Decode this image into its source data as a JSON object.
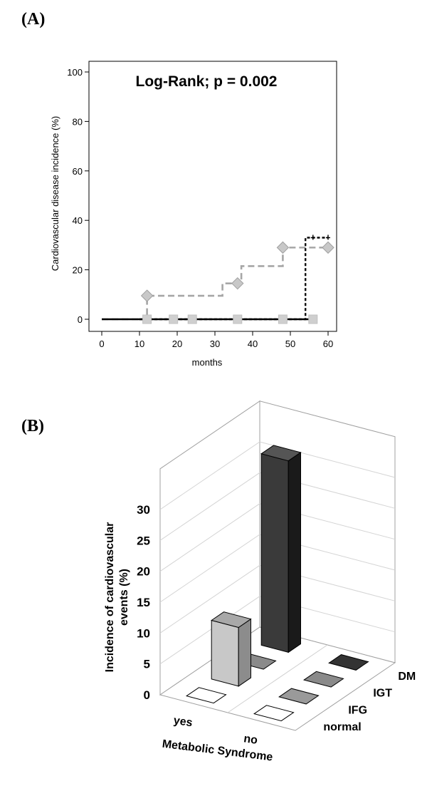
{
  "panel_a_label": "(A)",
  "panel_b_label": "(B)",
  "chart_data": [
    {
      "type": "line",
      "annotation": "Log-Rank; p = 0.002",
      "xlabel": "months",
      "ylabel": "Cardiovascular disease incidence (%)",
      "xlim": [
        0,
        60
      ],
      "ylim": [
        0,
        100
      ],
      "xticks": [
        0,
        10,
        20,
        30,
        40,
        50,
        60
      ],
      "yticks": [
        0,
        20,
        40,
        60,
        80,
        100
      ],
      "grid": false,
      "series": [
        {
          "style": "dashed",
          "color": "#a6a6a6",
          "marker": "diamond",
          "steps": [
            [
              0,
              0
            ],
            [
              12,
              0
            ],
            [
              12,
              9.5
            ],
            [
              32,
              9.5
            ],
            [
              32,
              14.5
            ],
            [
              37,
              14.5
            ],
            [
              37,
              21.5
            ],
            [
              48,
              21.5
            ],
            [
              48,
              29
            ],
            [
              60,
              29
            ]
          ],
          "markers": [
            [
              12,
              9.5
            ],
            [
              36,
              14.5
            ],
            [
              48,
              29
            ],
            [
              60,
              29
            ]
          ]
        },
        {
          "style": "solid",
          "color": "#000000",
          "marker": "square",
          "steps": [
            [
              0,
              0
            ],
            [
              55,
              0
            ]
          ],
          "markers": [
            [
              12,
              0
            ],
            [
              19,
              0
            ],
            [
              24,
              0
            ],
            [
              36,
              0
            ],
            [
              48,
              0
            ],
            [
              56,
              0
            ]
          ]
        },
        {
          "style": "dotted",
          "color": "#000000",
          "marker": "plus",
          "steps": [
            [
              10,
              0
            ],
            [
              54,
              0
            ],
            [
              54,
              33
            ],
            [
              60,
              33
            ]
          ],
          "markers": [
            [
              56,
              33
            ],
            [
              60,
              33
            ]
          ]
        }
      ]
    },
    {
      "type": "bar",
      "subtype": "3d",
      "xlabel": "Metabolic Syndrome",
      "ylabel": "Incidence of cardiovascular events (%)",
      "categories": [
        "yes",
        "no"
      ],
      "depth_categories": [
        "normal",
        "IFG",
        "IGT",
        "DM"
      ],
      "ylim": [
        0,
        30
      ],
      "yticks": [
        0,
        5,
        10,
        15,
        20,
        25,
        30
      ],
      "series": [
        {
          "name": "normal",
          "color": "#ffffff",
          "values": [
            0,
            0
          ]
        },
        {
          "name": "IFG",
          "color": "#9a9a9a",
          "values": [
            9.5,
            0
          ]
        },
        {
          "name": "IGT",
          "color": "#8a8a8a",
          "values": [
            0,
            0
          ]
        },
        {
          "name": "DM",
          "color": "#333333",
          "values": [
            31,
            0
          ]
        }
      ]
    }
  ]
}
